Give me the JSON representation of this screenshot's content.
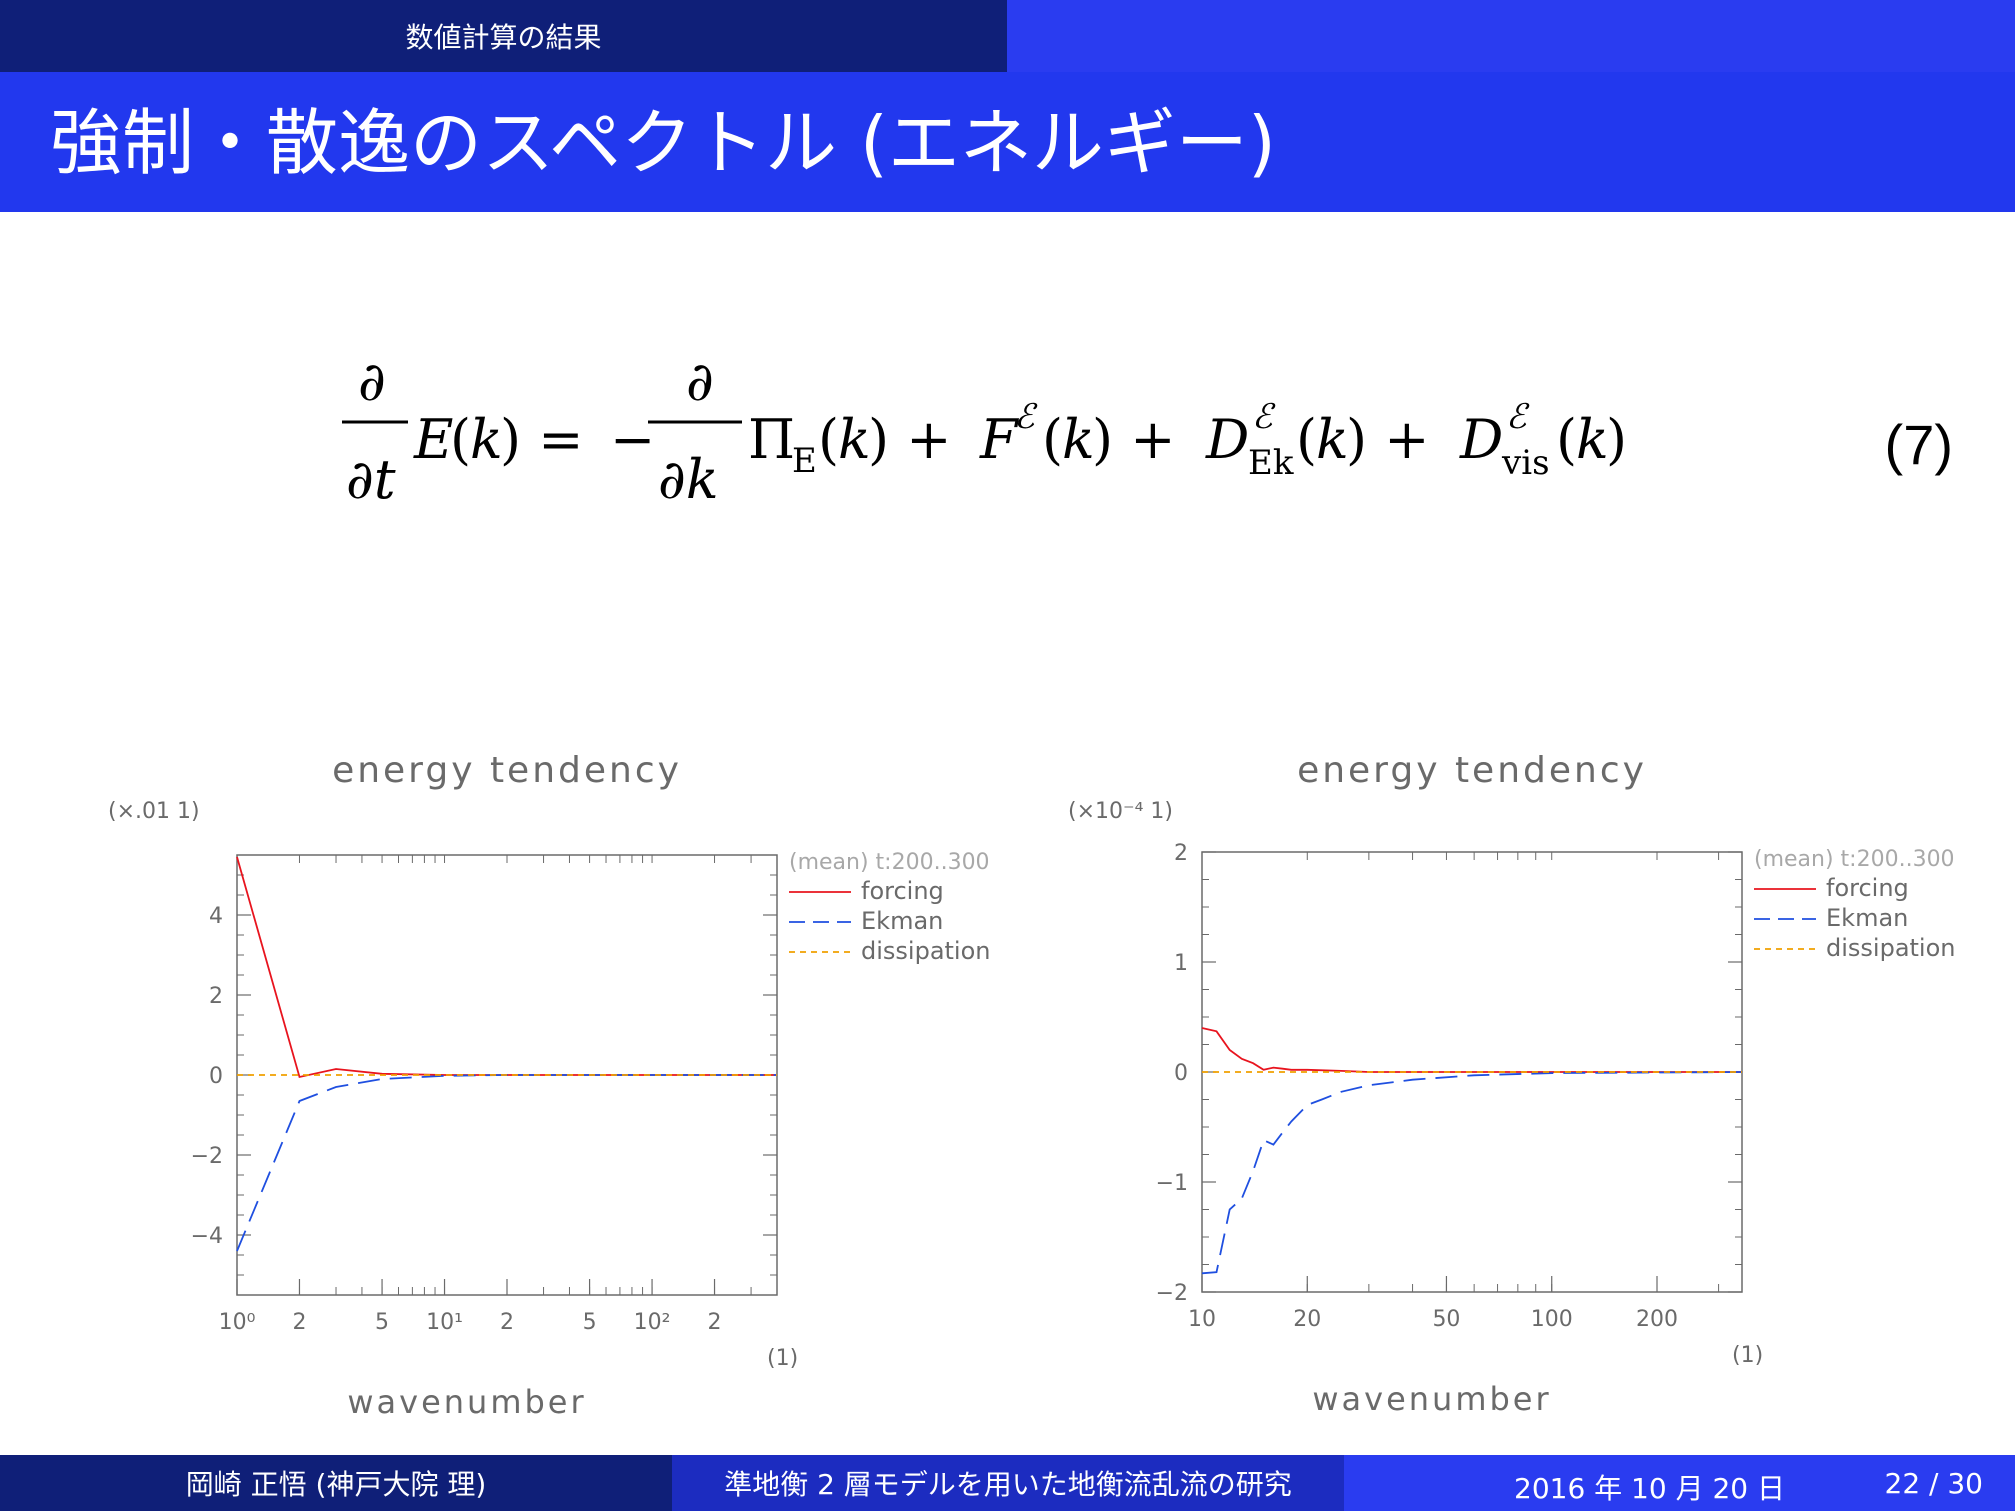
{
  "header": {
    "section": "数値計算の結果",
    "title": "強制・散逸のスペクトル (エネルギー)"
  },
  "equation": {
    "number": "(7)"
  },
  "chart_data": [
    {
      "type": "line",
      "title": "energy tendency",
      "scale_label": "(×.01 1)",
      "xlabel": "wavenumber",
      "xunit": "(1)",
      "legend_header": "(mean) t:200..300",
      "legend_placement": "right",
      "x_scale": "log",
      "xlim": [
        1,
        400
      ],
      "ylim": [
        -5.5,
        5.5
      ],
      "x_tick_labels": [
        "10⁰",
        "2",
        "5",
        "10¹",
        "2",
        "5",
        "10²",
        "2"
      ],
      "x_ticks": [
        1,
        2,
        5,
        10,
        20,
        50,
        100,
        200
      ],
      "y_ticks": [
        -4,
        -2,
        0,
        2,
        4
      ],
      "y_tick_labels": [
        "−4",
        "−2",
        "0",
        "2",
        "4"
      ],
      "series": [
        {
          "name": "forcing",
          "color": "#e8141e",
          "x": [
            1,
            2,
            3,
            5,
            10,
            20,
            50,
            100,
            200,
            400
          ],
          "y": [
            5.45,
            -0.05,
            0.15,
            0.03,
            0.0,
            0.0,
            0.0,
            0.0,
            0.0,
            0.0
          ]
        },
        {
          "name": "Ekman",
          "color": "#1f4fe0",
          "x": [
            1,
            2,
            3,
            5,
            10,
            20,
            50,
            100,
            200,
            400
          ],
          "y": [
            -4.4,
            -0.65,
            -0.3,
            -0.1,
            -0.02,
            0.0,
            0.0,
            0.0,
            0.0,
            0.0
          ]
        },
        {
          "name": "dissipation",
          "color": "#f0a000",
          "x": [
            1,
            400
          ],
          "y": [
            0.0,
            0.0
          ]
        }
      ]
    },
    {
      "type": "line",
      "title": "energy tendency",
      "scale_label": "(×10⁻⁴ 1)",
      "xlabel": "wavenumber",
      "xunit": "(1)",
      "legend_header": "(mean) t:200..300",
      "legend_placement": "right",
      "x_scale": "log",
      "xlim": [
        10,
        350
      ],
      "ylim": [
        -2,
        2
      ],
      "x_ticks": [
        10,
        20,
        50,
        100,
        200
      ],
      "x_tick_labels": [
        "10",
        "20",
        "50",
        "100",
        "200"
      ],
      "y_ticks": [
        -2,
        -1,
        0,
        1,
        2
      ],
      "y_tick_labels": [
        "−2",
        "−1",
        "0",
        "1",
        "2"
      ],
      "series": [
        {
          "name": "forcing",
          "color": "#e8141e",
          "x": [
            10,
            11,
            12,
            13,
            14,
            15,
            16,
            17,
            18,
            20,
            25,
            30,
            50,
            100,
            350
          ],
          "y": [
            0.4,
            0.37,
            0.2,
            0.12,
            0.08,
            0.02,
            0.04,
            0.03,
            0.02,
            0.02,
            0.01,
            0.0,
            0.0,
            0.0,
            0.0
          ]
        },
        {
          "name": "Ekman",
          "color": "#1f4fe0",
          "x": [
            10,
            11,
            12,
            13,
            14,
            15,
            16,
            17,
            18,
            20,
            22,
            25,
            30,
            40,
            60,
            100,
            350
          ],
          "y": [
            -1.83,
            -1.82,
            -1.25,
            -1.15,
            -0.9,
            -0.62,
            -0.66,
            -0.55,
            -0.45,
            -0.3,
            -0.25,
            -0.18,
            -0.12,
            -0.07,
            -0.03,
            -0.01,
            0.0
          ]
        },
        {
          "name": "dissipation",
          "color": "#f0a000",
          "x": [
            10,
            350
          ],
          "y": [
            0.0,
            0.0
          ]
        }
      ]
    }
  ],
  "footer": {
    "author": "岡崎 正悟 (神戸大院 理)",
    "talk_title": "準地衡 2 層モデルを用いた地衡流乱流の研究",
    "date": "2016 年 10 月 20 日",
    "page": "22 / 30"
  }
}
